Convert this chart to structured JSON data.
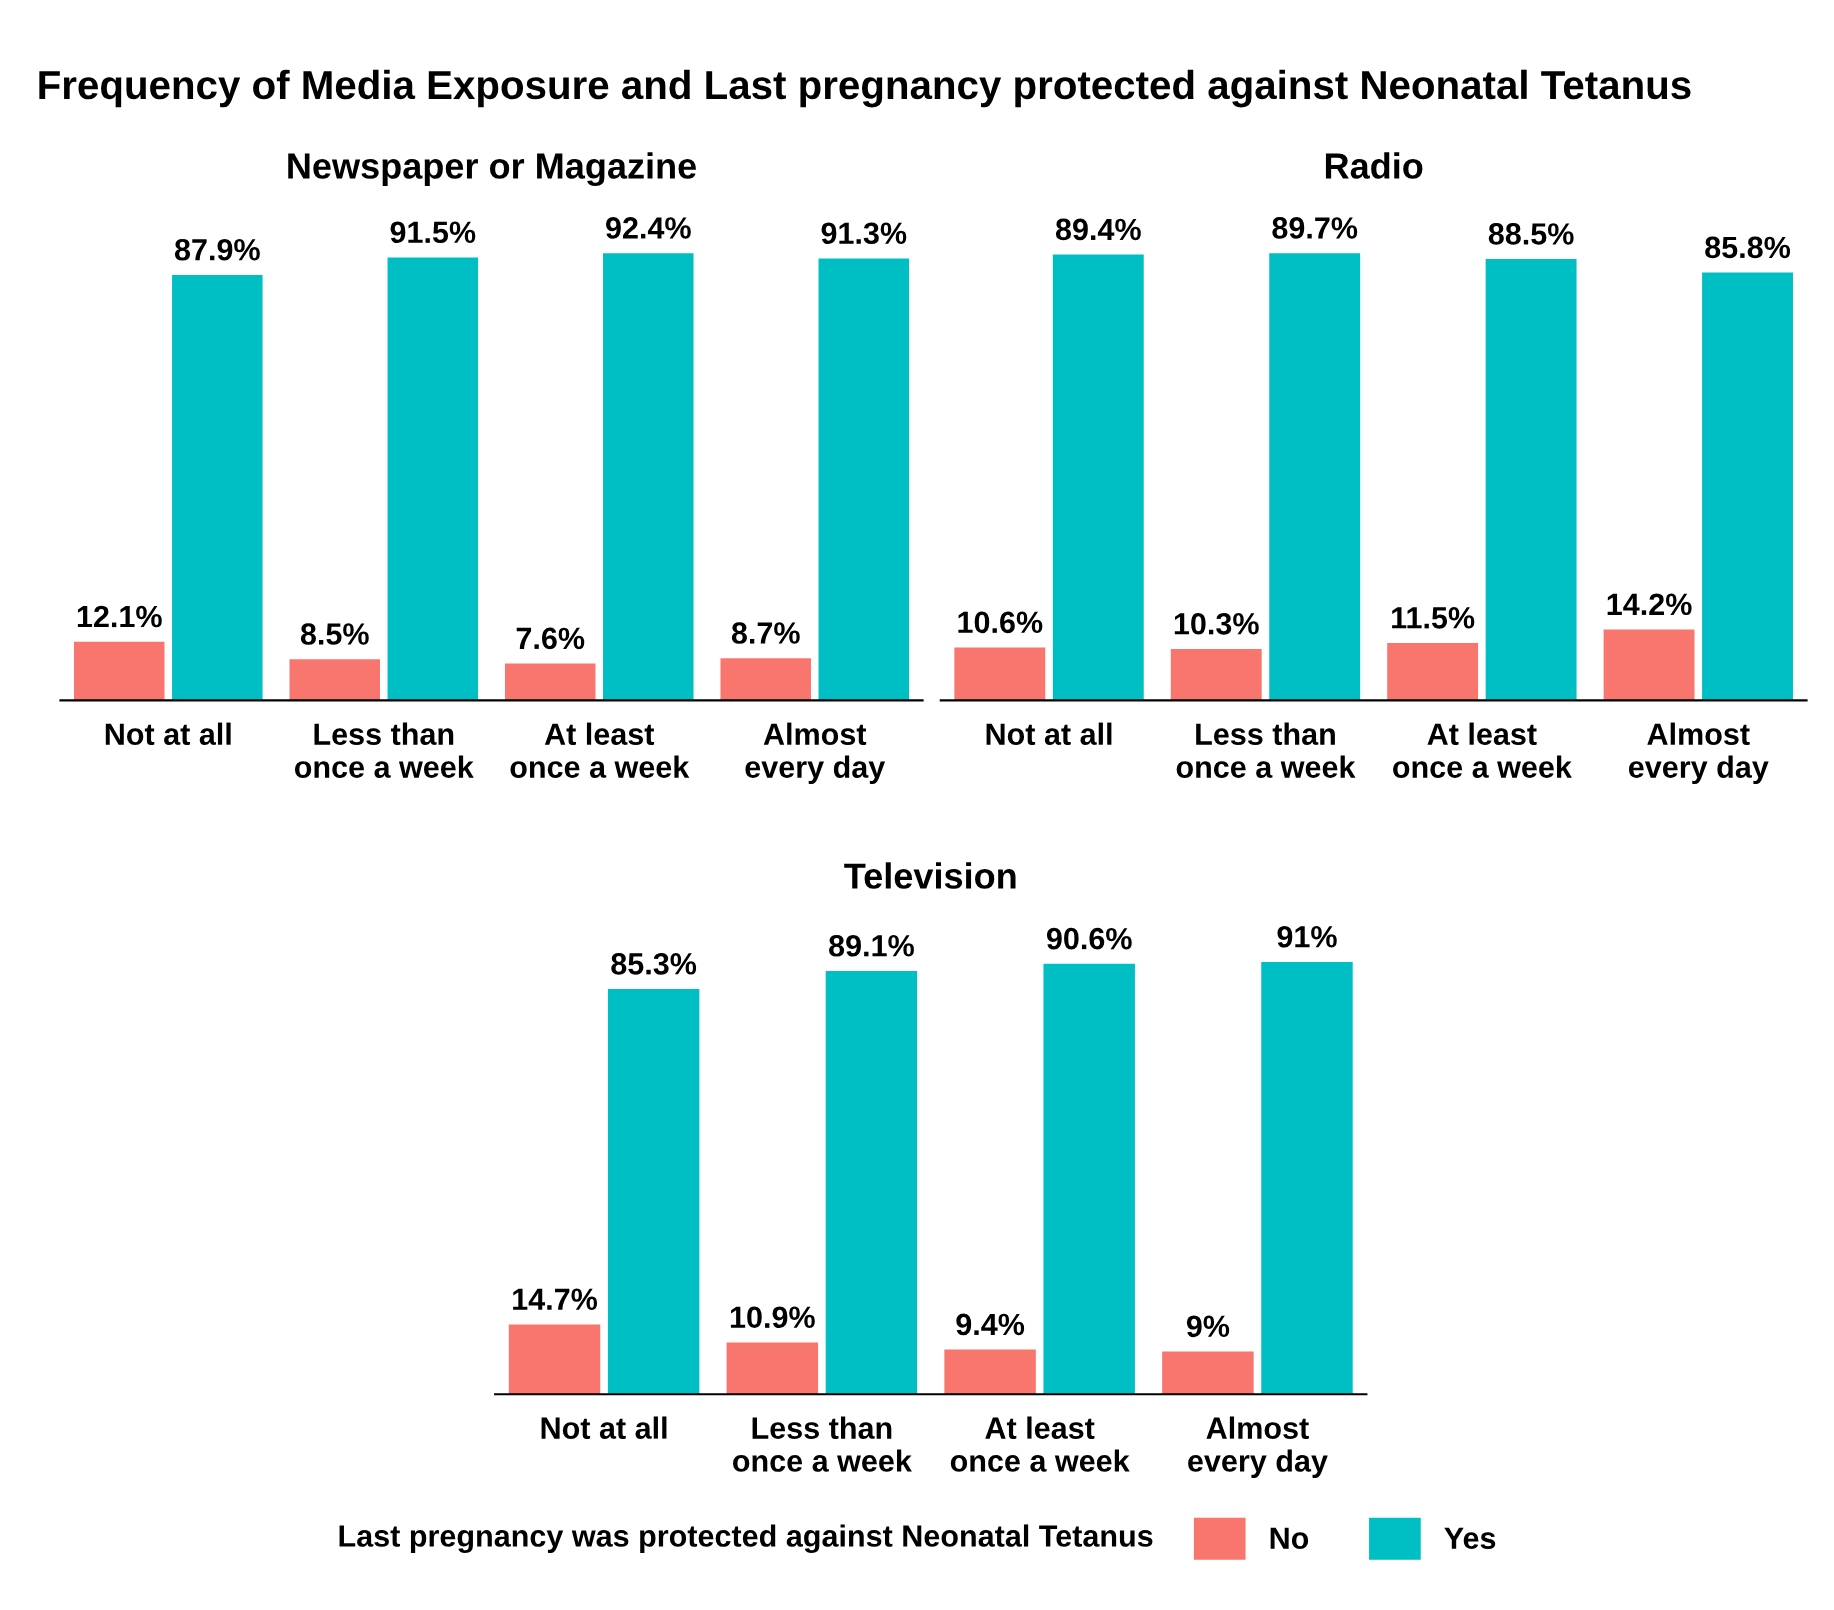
{
  "chart_data": [
    {
      "type": "bar",
      "title": "Newspaper or Magazine",
      "annotations": [
        "Frequency of Media Exposure and Last pregnancy protected against Neonatal Tetanus"
      ],
      "categories": [
        "Not at all",
        "Less than\nonce a week",
        "At least\nonce a week",
        "Almost\nevery day"
      ],
      "series": [
        {
          "color": "#f8766d",
          "values": [
            12.1,
            8.5,
            7.6,
            8.7
          ],
          "value_labels": [
            "12.1%",
            "8.5%",
            "7.6%",
            "8.7%"
          ]
        },
        {
          "color": "#00bfc4",
          "values": [
            87.9,
            91.5,
            92.4,
            91.3
          ],
          "value_labels": [
            "87.9%",
            "91.5%",
            "92.4%",
            "91.3%"
          ]
        }
      ],
      "tick_labels": "x"
    },
    {
      "type": "bar",
      "title": "Radio",
      "categories": [
        "Not at all",
        "Less than\nonce a week",
        "At least\nonce a week",
        "Almost\nevery day"
      ],
      "series": [
        {
          "color": "#f8766d",
          "values": [
            10.6,
            10.3,
            11.5,
            14.2
          ],
          "value_labels": [
            "10.6%",
            "10.3%",
            "11.5%",
            "14.2%"
          ]
        },
        {
          "color": "#00bfc4",
          "values": [
            89.4,
            89.7,
            88.5,
            85.8
          ],
          "value_labels": [
            "89.4%",
            "89.7%",
            "88.5%",
            "85.8%"
          ]
        }
      ],
      "tick_labels": "x"
    },
    {
      "type": "bar",
      "title": "Television",
      "legend_title": "Last pregnancy was protected against Neonatal Tetanus",
      "categories": [
        "Not at all",
        "Less than\nonce a week",
        "At least\nonce a week",
        "Almost\nevery day"
      ],
      "series": [
        {
          "name": "No",
          "color": "#f8766d",
          "values": [
            14.7,
            10.9,
            9.4,
            9
          ],
          "value_labels": [
            "14.7%",
            "10.9%",
            "9.4%",
            "9%"
          ]
        },
        {
          "name": "Yes",
          "color": "#00bfc4",
          "values": [
            85.3,
            89.1,
            90.6,
            91
          ],
          "value_labels": [
            "85.3%",
            "89.1%",
            "90.6%",
            "91%"
          ]
        }
      ],
      "tick_labels": "x",
      "legend": "bottom"
    }
  ]
}
